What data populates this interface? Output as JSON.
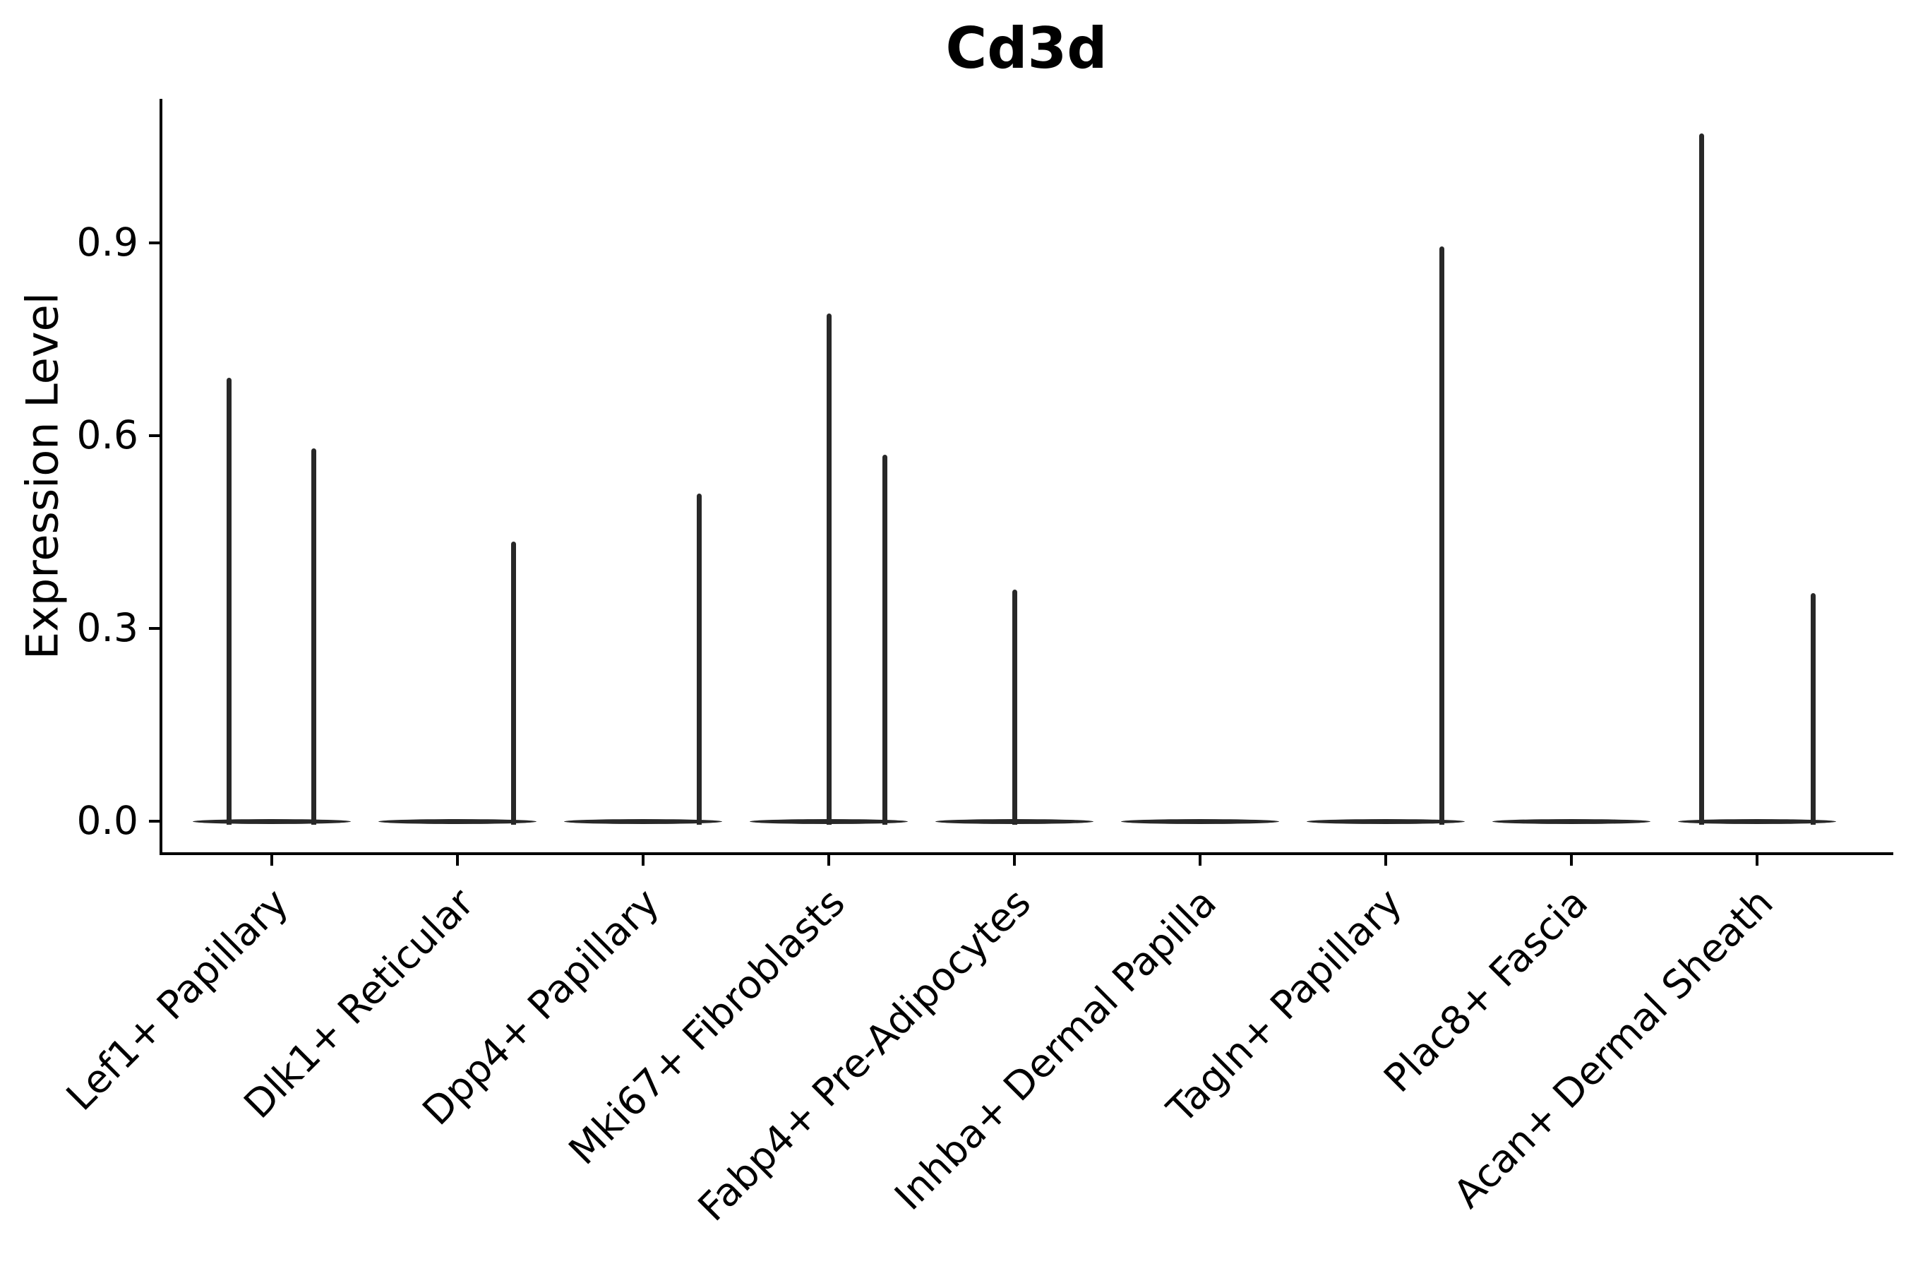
{
  "chart_data": {
    "type": "violin",
    "title": "Cd3d",
    "ylabel": "Expression Level",
    "xlabel": "",
    "yticks": [
      "0.0",
      "0.3",
      "0.6",
      "0.9"
    ],
    "ytick_values": [
      0.0,
      0.3,
      0.6,
      0.9
    ],
    "ylim": [
      -0.05,
      1.13
    ],
    "grid": false,
    "legend": "none",
    "categories": [
      "Lef1+ Papillary",
      "Dlk1+ Reticular",
      "Dpp4+ Papillary",
      "Mki67+ Fibroblasts",
      "Fabp4+ Pre-Adipocytes",
      "Inhba+ Dermal Papilla",
      "Tagln+ Papillary",
      "Plac8+ Fascia",
      "Acan+ Dermal Sheath"
    ],
    "series": [
      {
        "name": "Lef1+ Papillary",
        "baseline_value": 0,
        "spikes": [
          {
            "rel_x": -0.54,
            "value": 0.69
          },
          {
            "rel_x": 0.53,
            "value": 0.58
          }
        ]
      },
      {
        "name": "Dlk1+ Reticular",
        "baseline_value": 0,
        "spikes": [
          {
            "rel_x": 0.71,
            "value": 0.435
          }
        ]
      },
      {
        "name": "Dpp4+ Papillary",
        "baseline_value": 0,
        "spikes": [
          {
            "rel_x": 0.71,
            "value": 0.51
          }
        ]
      },
      {
        "name": "Mki67+ Fibroblasts",
        "baseline_value": 0,
        "spikes": [
          {
            "rel_x": 0.0,
            "value": 0.79
          },
          {
            "rel_x": 0.71,
            "value": 0.57
          }
        ]
      },
      {
        "name": "Fabp4+ Pre-Adipocytes",
        "baseline_value": 0,
        "spikes": [
          {
            "rel_x": 0.0,
            "value": 0.36
          }
        ]
      },
      {
        "name": "Inhba+ Dermal Papilla",
        "baseline_value": 0,
        "spikes": []
      },
      {
        "name": "Tagln+ Papillary",
        "baseline_value": 0,
        "spikes": [
          {
            "rel_x": 0.71,
            "value": 0.895
          }
        ]
      },
      {
        "name": "Plac8+ Fascia",
        "baseline_value": 0,
        "spikes": []
      },
      {
        "name": "Acan+ Dermal Sheath",
        "baseline_value": 0,
        "spikes": [
          {
            "rel_x": -0.7,
            "value": 1.07
          },
          {
            "rel_x": 0.71,
            "value": 0.355
          }
        ]
      }
    ],
    "colors": {
      "violin": "#282828",
      "axis": "#000000",
      "text": "#000000",
      "background": "#ffffff"
    }
  }
}
